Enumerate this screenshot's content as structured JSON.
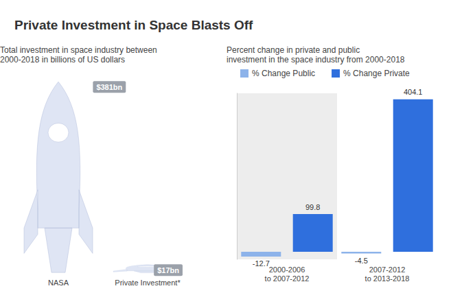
{
  "chart_data": [
    {
      "type": "pictorial_bar",
      "title": "Private Investment in Space Blasts Off",
      "subtitle": "Total investment in space industry between 2000-2018 in billions of US dollars",
      "categories": [
        "NASA",
        "Private Investment*"
      ],
      "values": [
        381,
        17
      ],
      "value_labels": [
        "$381bn",
        "$17bn"
      ],
      "color": "#dfe5f4",
      "ylim": [
        0,
        381
      ],
      "yticks": [],
      "tick_labels": "x",
      "data_labels": true
    },
    {
      "type": "bar",
      "subtitle": "Percent change in private and public investment in the space industry from 2000-2018",
      "categories": [
        "2000-2006 to 2007-2012",
        "2007-2012 to 2013-2018"
      ],
      "series": [
        {
          "name": "% Change Public",
          "color": "#8db3ea",
          "values": [
            -12.7,
            -4.5
          ]
        },
        {
          "name": "% Change Private",
          "color": "#2f6fdd",
          "values": [
            99.8,
            404.1
          ]
        }
      ],
      "ylim": [
        -20,
        420
      ],
      "yticks": [],
      "tick_labels": "x",
      "data_labels": true,
      "legend": "top"
    }
  ]
}
